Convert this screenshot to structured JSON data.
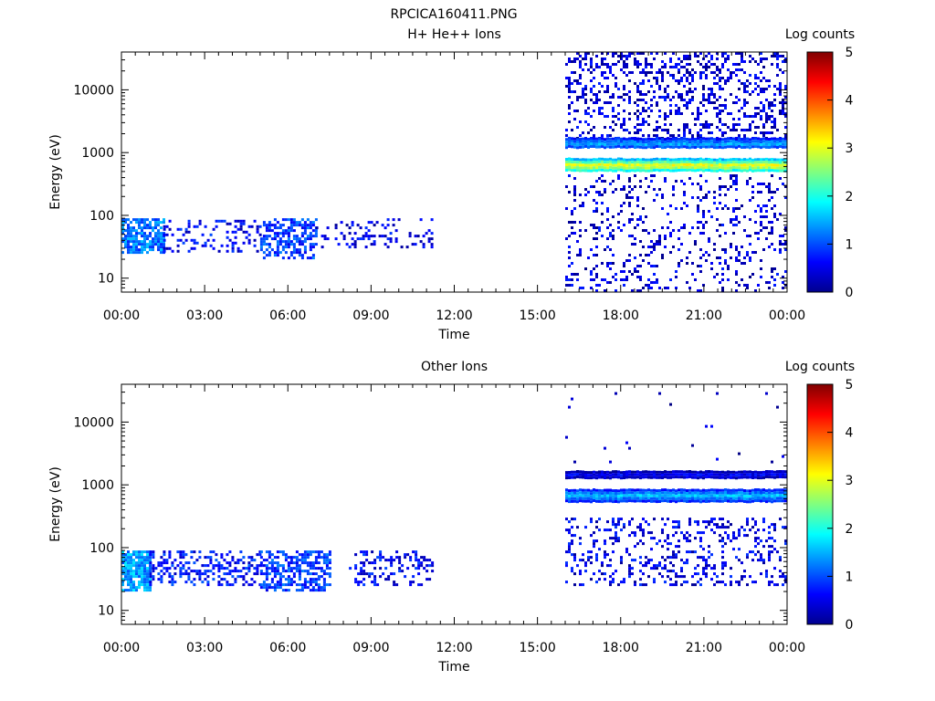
{
  "figure_title": "RPCICA160411.PNG",
  "chart_data": [
    {
      "type": "heatmap",
      "title": "H+ He++ Ions",
      "xlabel": "Time",
      "ylabel": "Energy (eV)",
      "x_ticks": [
        "00:00",
        "03:00",
        "06:00",
        "09:00",
        "12:00",
        "15:00",
        "18:00",
        "21:00",
        "00:00"
      ],
      "x_range_hours": [
        0,
        24
      ],
      "y_scale": "log",
      "y_range": [
        6,
        40000
      ],
      "y_ticks": [
        10,
        100,
        1000,
        10000
      ],
      "y_tick_labels": [
        "10",
        "100",
        "1000",
        "10000"
      ],
      "colorbar": {
        "label": "Log counts",
        "range": [
          0,
          5
        ],
        "ticks": [
          "0",
          "1",
          "2",
          "3",
          "4",
          "5"
        ]
      },
      "regions": [
        {
          "t_start": 0.0,
          "t_end": 1.5,
          "e_low": 25,
          "e_high": 90,
          "log_counts": 1.2,
          "density": 0.75
        },
        {
          "t_start": 1.5,
          "t_end": 5.0,
          "e_low": 28,
          "e_high": 85,
          "log_counts": 0.6,
          "density": 0.22
        },
        {
          "t_start": 5.0,
          "t_end": 7.0,
          "e_low": 22,
          "e_high": 90,
          "log_counts": 0.9,
          "density": 0.55
        },
        {
          "t_start": 7.0,
          "t_end": 11.2,
          "e_low": 30,
          "e_high": 90,
          "log_counts": 0.5,
          "density": 0.18
        },
        {
          "t_start": 16.0,
          "t_end": 24.0,
          "e_low": 1500,
          "e_high": 40000,
          "log_counts": 0.4,
          "density": 0.28
        },
        {
          "t_start": 16.0,
          "t_end": 24.0,
          "e_low": 6,
          "e_high": 450,
          "log_counts": 0.4,
          "density": 0.16
        }
      ],
      "bands": [
        {
          "t_start": 16.0,
          "t_end": 24.0,
          "e_center": 1450,
          "width_log": 0.08,
          "log_counts": 1.5
        },
        {
          "t_start": 16.0,
          "t_end": 24.0,
          "e_center": 650,
          "width_log": 0.1,
          "log_counts": 3.2
        }
      ]
    },
    {
      "type": "heatmap",
      "title": "Other Ions",
      "xlabel": "Time",
      "ylabel": "Energy (eV)",
      "x_ticks": [
        "00:00",
        "03:00",
        "06:00",
        "09:00",
        "12:00",
        "15:00",
        "18:00",
        "21:00",
        "00:00"
      ],
      "x_range_hours": [
        0,
        24
      ],
      "y_scale": "log",
      "y_range": [
        6,
        40000
      ],
      "y_ticks": [
        10,
        100,
        1000,
        10000
      ],
      "y_tick_labels": [
        "10",
        "100",
        "1000",
        "10000"
      ],
      "colorbar": {
        "label": "Log counts",
        "range": [
          0,
          5
        ],
        "ticks": [
          "0",
          "1",
          "2",
          "3",
          "4",
          "5"
        ]
      },
      "regions": [
        {
          "t_start": 0.0,
          "t_end": 1.0,
          "e_low": 22,
          "e_high": 90,
          "log_counts": 1.4,
          "density": 0.85
        },
        {
          "t_start": 1.0,
          "t_end": 5.0,
          "e_low": 25,
          "e_high": 90,
          "log_counts": 0.7,
          "density": 0.35
        },
        {
          "t_start": 5.0,
          "t_end": 7.5,
          "e_low": 20,
          "e_high": 90,
          "log_counts": 0.9,
          "density": 0.6
        },
        {
          "t_start": 8.2,
          "t_end": 11.2,
          "e_low": 25,
          "e_high": 90,
          "log_counts": 0.6,
          "density": 0.3
        },
        {
          "t_start": 16.0,
          "t_end": 24.0,
          "e_low": 25,
          "e_high": 300,
          "log_counts": 0.5,
          "density": 0.22
        },
        {
          "t_start": 16.0,
          "t_end": 24.0,
          "e_low": 2000,
          "e_high": 30000,
          "log_counts": 0.3,
          "density": 0.01
        }
      ],
      "bands": [
        {
          "t_start": 16.0,
          "t_end": 24.0,
          "e_center": 1500,
          "width_log": 0.05,
          "log_counts": 0.6
        },
        {
          "t_start": 16.0,
          "t_end": 24.0,
          "e_center": 700,
          "width_log": 0.09,
          "log_counts": 1.6
        }
      ]
    }
  ]
}
